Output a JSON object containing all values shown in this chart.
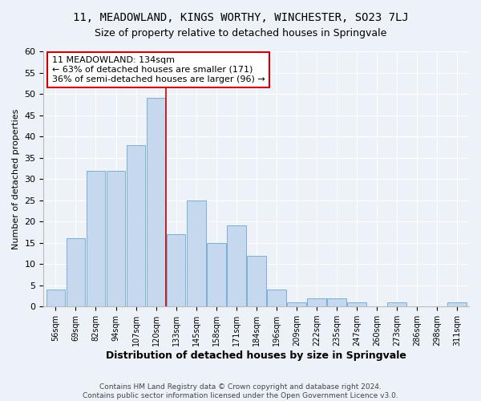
{
  "title": "11, MEADOWLAND, KINGS WORTHY, WINCHESTER, SO23 7LJ",
  "subtitle": "Size of property relative to detached houses in Springvale",
  "xlabel": "Distribution of detached houses by size in Springvale",
  "ylabel": "Number of detached properties",
  "bar_labels": [
    "56sqm",
    "69sqm",
    "82sqm",
    "94sqm",
    "107sqm",
    "120sqm",
    "133sqm",
    "145sqm",
    "158sqm",
    "171sqm",
    "184sqm",
    "196sqm",
    "209sqm",
    "222sqm",
    "235sqm",
    "247sqm",
    "260sqm",
    "273sqm",
    "286sqm",
    "298sqm",
    "311sqm"
  ],
  "bar_values": [
    4,
    16,
    32,
    32,
    38,
    49,
    17,
    25,
    15,
    19,
    12,
    4,
    1,
    2,
    2,
    1,
    0,
    1,
    0,
    0,
    1
  ],
  "bar_color": "#c5d8ee",
  "bar_edge_color": "#7aafd4",
  "annotation_title": "11 MEADOWLAND: 134sqm",
  "annotation_line1": "← 63% of detached houses are smaller (171)",
  "annotation_line2": "36% of semi-detached houses are larger (96) →",
  "annotation_box_edge": "#cc0000",
  "highlight_line_color": "#cc0000",
  "ylim": [
    0,
    60
  ],
  "yticks": [
    0,
    5,
    10,
    15,
    20,
    25,
    30,
    35,
    40,
    45,
    50,
    55,
    60
  ],
  "footer_line1": "Contains HM Land Registry data © Crown copyright and database right 2024.",
  "footer_line2": "Contains public sector information licensed under the Open Government Licence v3.0.",
  "bg_color": "#edf2f9",
  "grid_color": "#ffffff"
}
